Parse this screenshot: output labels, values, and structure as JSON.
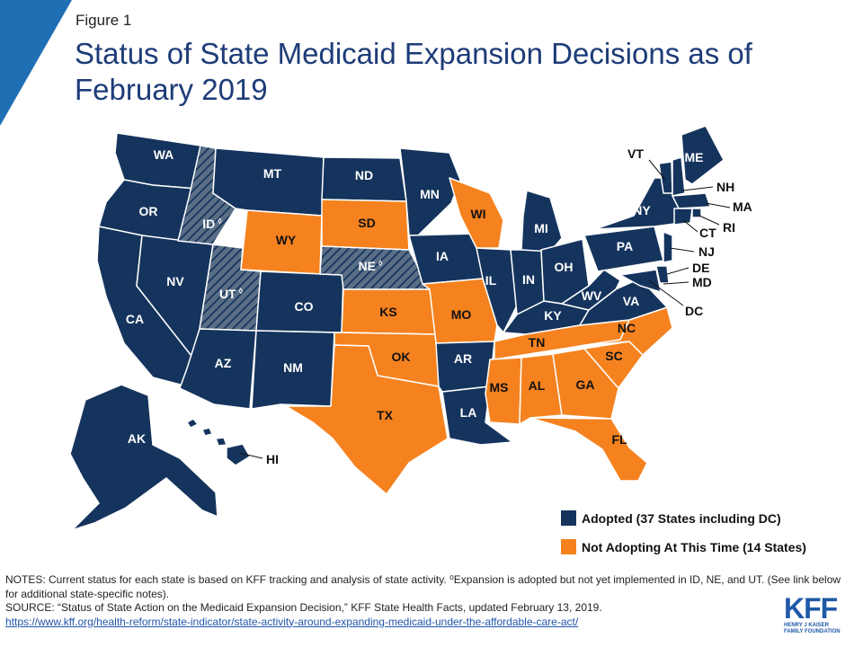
{
  "figure_label": "Figure 1",
  "title": "Status of State Medicaid Expansion Decisions as of February 2019",
  "colors": {
    "adopted": "#15345d",
    "not_adopting": "#f5821f",
    "accent": "#1f6fb5",
    "title": "#1d3c78"
  },
  "legend": {
    "adopted": "Adopted (37 States including DC)",
    "not_adopting": "Not Adopting At This Time (14 States)"
  },
  "map_labels": {
    "WA": "WA",
    "OR": "OR",
    "CA": "CA",
    "NV": "NV",
    "ID": "ID",
    "UT": "UT",
    "AZ": "AZ",
    "MT": "MT",
    "WY": "WY",
    "CO": "CO",
    "NM": "NM",
    "ND": "ND",
    "SD": "SD",
    "NE": "NE",
    "KS": "KS",
    "OK": "OK",
    "TX": "TX",
    "MN": "MN",
    "IA": "IA",
    "MO": "MO",
    "AR": "AR",
    "LA": "LA",
    "WI": "WI",
    "IL": "IL",
    "MI": "MI",
    "IN": "IN",
    "OH": "OH",
    "KY": "KY",
    "TN": "TN",
    "MS": "MS",
    "AL": "AL",
    "GA": "GA",
    "FL": "FL",
    "SC": "SC",
    "NC": "NC",
    "VA": "VA",
    "WV": "WV",
    "PA": "PA",
    "NY": "NY",
    "VT": "VT",
    "ME": "ME",
    "NH": "NH",
    "MA": "MA",
    "RI": "RI",
    "CT": "CT",
    "NJ": "NJ",
    "DE": "DE",
    "MD": "MD",
    "DC": "DC",
    "AK": "AK",
    "HI": "HI"
  },
  "footnote_marker": "◊",
  "notes": {
    "line1": "NOTES: Current status for each state is based on KFF tracking and analysis of state activity. ⁰Expansion is adopted but not yet implemented in ID, NE, and UT. (See link below for additional state-specific notes).",
    "line2": "SOURCE: “Status of State Action on the Medicaid Expansion Decision,” KFF State Health Facts, updated February 13, 2019.",
    "link": "https://www.kff.org/health-reform/state-indicator/state-activity-around-expanding-medicaid-under-the-affordable-care-act/"
  },
  "logo": {
    "main": "KFF",
    "sub1": "HENRY J KAISER",
    "sub2": "FAMILY FOUNDATION"
  }
}
